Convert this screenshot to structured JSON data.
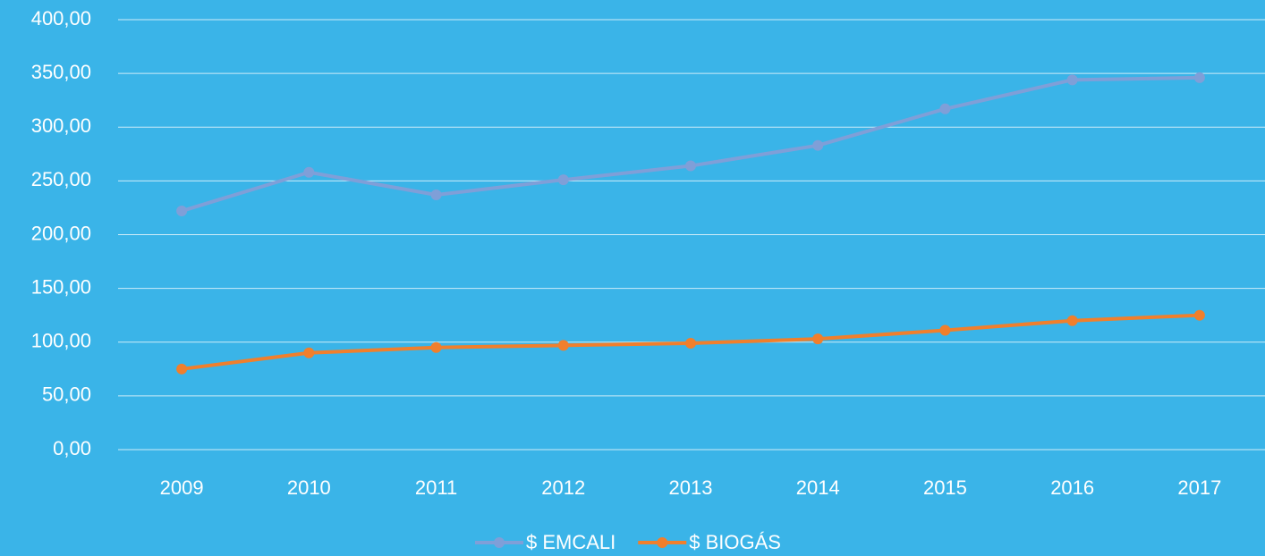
{
  "chart_data": {
    "type": "line",
    "categories": [
      "2009",
      "2010",
      "2011",
      "2012",
      "2013",
      "2014",
      "2015",
      "2016",
      "2017"
    ],
    "series": [
      {
        "name": "$ EMCALI",
        "color": "#7f9fd8",
        "values": [
          222,
          258,
          237,
          251,
          264,
          283,
          317,
          344,
          346
        ]
      },
      {
        "name": "$ BIOGÁS",
        "color": "#f07f2c",
        "values": [
          75,
          90,
          95,
          97,
          99,
          103,
          111,
          120,
          125
        ]
      }
    ],
    "ylim": [
      0,
      400
    ],
    "yticks": [
      {
        "value": 0,
        "label": "0,00"
      },
      {
        "value": 50,
        "label": "50,00"
      },
      {
        "value": 100,
        "label": "100,00"
      },
      {
        "value": 150,
        "label": "150,00"
      },
      {
        "value": 200,
        "label": "200,00"
      },
      {
        "value": 250,
        "label": "250,00"
      },
      {
        "value": 300,
        "label": "300,00"
      },
      {
        "value": 350,
        "label": "350,00"
      },
      {
        "value": 400,
        "label": "400,00"
      }
    ],
    "grid": true,
    "legend": "bottom"
  }
}
